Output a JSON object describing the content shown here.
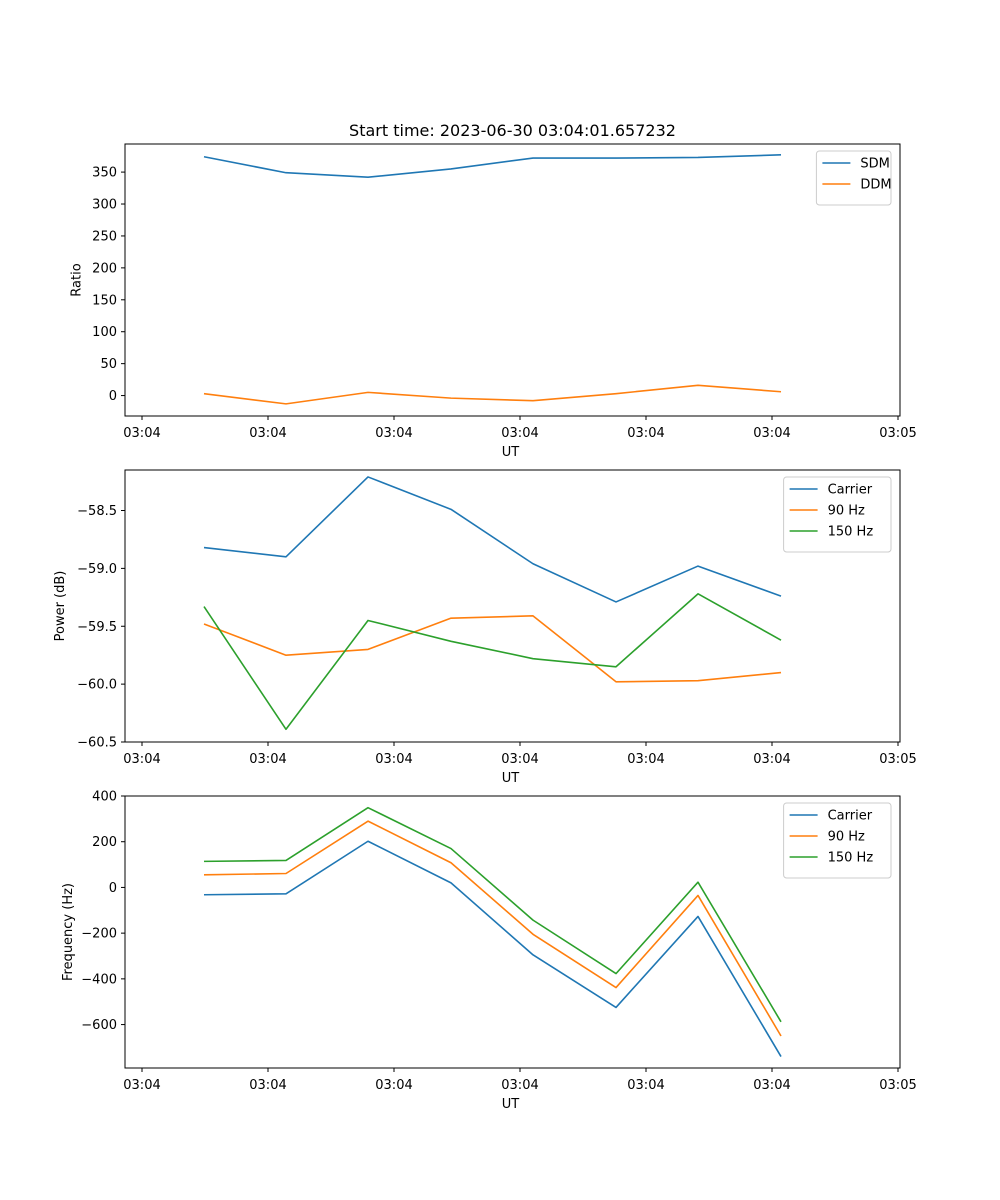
{
  "figure": {
    "title": "Start time: 2023-06-30 03:04:01.657232"
  },
  "chart_data": [
    {
      "type": "line",
      "title": "Start time: 2023-06-30 03:04:01.657232",
      "xlabel": "UT",
      "ylabel": "Ratio",
      "x_tick_labels": [
        "03:04",
        "03:04",
        "03:04",
        "03:04",
        "03:04",
        "03:04",
        "03:05"
      ],
      "y_ticks": [
        0,
        50,
        100,
        150,
        200,
        250,
        300,
        350
      ],
      "ylim": [
        -32,
        394
      ],
      "legend_position": "top-right",
      "grid": false,
      "series": [
        {
          "name": "SDM",
          "color": "#1f77b4",
          "values": [
            374,
            349,
            342,
            355,
            372,
            372,
            373,
            377
          ]
        },
        {
          "name": "DDM",
          "color": "#ff7f0e",
          "values": [
            3,
            -13,
            5,
            -4,
            -8,
            3,
            16,
            6
          ]
        }
      ]
    },
    {
      "type": "line",
      "title": "",
      "xlabel": "UT",
      "ylabel": "Power (dB)",
      "x_tick_labels": [
        "03:04",
        "03:04",
        "03:04",
        "03:04",
        "03:04",
        "03:04",
        "03:05"
      ],
      "y_ticks": [
        -60.5,
        -60.0,
        -59.5,
        -59.0,
        -58.5
      ],
      "y_tick_labels": [
        "−60.5",
        "−60.0",
        "−59.5",
        "−59.0",
        "−58.5"
      ],
      "ylim": [
        -60.5,
        -58.15
      ],
      "legend_position": "top-right",
      "grid": false,
      "series": [
        {
          "name": "Carrier",
          "color": "#1f77b4",
          "values": [
            -58.82,
            -58.9,
            -58.21,
            -58.49,
            -58.96,
            -59.29,
            -58.98,
            -59.24
          ]
        },
        {
          "name": "90 Hz",
          "color": "#ff7f0e",
          "values": [
            -59.48,
            -59.75,
            -59.7,
            -59.43,
            -59.41,
            -59.98,
            -59.97,
            -59.9
          ]
        },
        {
          "name": "150 Hz",
          "color": "#2ca02c",
          "values": [
            -59.33,
            -60.39,
            -59.45,
            -59.63,
            -59.78,
            -59.85,
            -59.22,
            -59.62
          ]
        }
      ]
    },
    {
      "type": "line",
      "title": "",
      "xlabel": "UT",
      "ylabel": "Frequency (Hz)",
      "x_tick_labels": [
        "03:04",
        "03:04",
        "03:04",
        "03:04",
        "03:04",
        "03:04",
        "03:05"
      ],
      "y_ticks": [
        -600,
        -400,
        -200,
        0,
        200,
        400
      ],
      "y_tick_labels": [
        "−600",
        "−400",
        "−200",
        "0",
        "200",
        "400"
      ],
      "ylim": [
        -790,
        400
      ],
      "legend_position": "top-right",
      "grid": false,
      "series": [
        {
          "name": "Carrier",
          "color": "#1f77b4",
          "values": [
            -32,
            -28,
            202,
            20,
            -295,
            -525,
            -127,
            -740
          ]
        },
        {
          "name": "90 Hz",
          "color": "#ff7f0e",
          "values": [
            55,
            61,
            290,
            108,
            -205,
            -438,
            -35,
            -650
          ]
        },
        {
          "name": "150 Hz",
          "color": "#2ca02c",
          "values": [
            114,
            118,
            349,
            170,
            -143,
            -377,
            23,
            -588
          ]
        }
      ]
    }
  ]
}
